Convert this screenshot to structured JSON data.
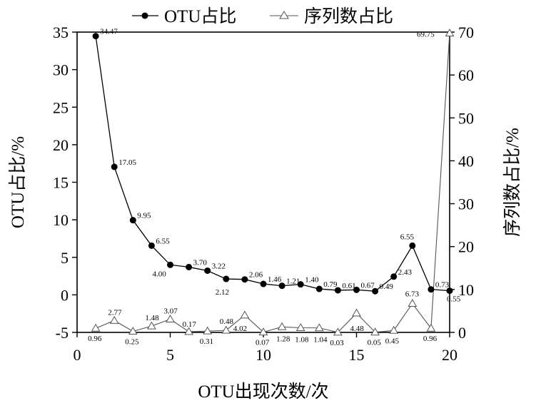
{
  "chart_data": {
    "type": "line",
    "legend": {
      "placement": "top"
    },
    "xlabel": "OTU出现次数/次",
    "ylabel_left": "OTU占比/%",
    "ylabel_right": "序列数占比/%",
    "xlim": [
      0,
      20
    ],
    "ylim_left": [
      -5,
      35
    ],
    "ylim_right": [
      0,
      70
    ],
    "xticks": [
      0,
      5,
      10,
      15,
      20
    ],
    "yticks_left": [
      -5,
      0,
      5,
      10,
      15,
      20,
      25,
      30,
      35
    ],
    "yticks_right": [
      0,
      10,
      20,
      30,
      40,
      50,
      60,
      70
    ],
    "x": [
      1,
      2,
      3,
      4,
      5,
      6,
      7,
      8,
      9,
      10,
      11,
      12,
      13,
      14,
      15,
      16,
      17,
      18,
      19,
      20
    ],
    "series": [
      {
        "name": "OTU占比",
        "axis": "left",
        "marker": "filled-circle",
        "values": [
          34.47,
          17.05,
          9.95,
          6.55,
          4.0,
          3.7,
          3.22,
          2.12,
          2.06,
          1.46,
          1.21,
          1.4,
          0.79,
          0.61,
          0.67,
          0.49,
          2.43,
          6.55,
          0.73,
          0.55
        ],
        "labels": [
          "34.47",
          "17.05",
          "9.95",
          "6.55",
          "4.00",
          "3.70",
          "3.22",
          "2.12",
          "2.06",
          "1.46",
          "1.21",
          "1.40",
          "0.79",
          "0.61",
          "0.67",
          "0.49",
          "2.43",
          "6.55",
          "0.73",
          "0.55"
        ]
      },
      {
        "name": "序列数占比",
        "axis": "right",
        "marker": "open-triangle",
        "values": [
          0.96,
          2.77,
          0.25,
          1.48,
          3.07,
          0.17,
          0.31,
          0.48,
          4.02,
          0.07,
          1.28,
          1.08,
          1.04,
          0.03,
          4.48,
          0.05,
          0.45,
          6.73,
          0.96,
          69.75
        ],
        "labels": [
          "0.96",
          "2.77",
          "0.25",
          "1.48",
          "3.07",
          "0.17",
          "0.31",
          "0.48",
          "4.02",
          "0.07",
          "1.28",
          "1.08",
          "1.04",
          "0.03",
          "4.48",
          "0.05",
          "0.45",
          "6.73",
          "0.96",
          "69.75"
        ]
      }
    ]
  }
}
